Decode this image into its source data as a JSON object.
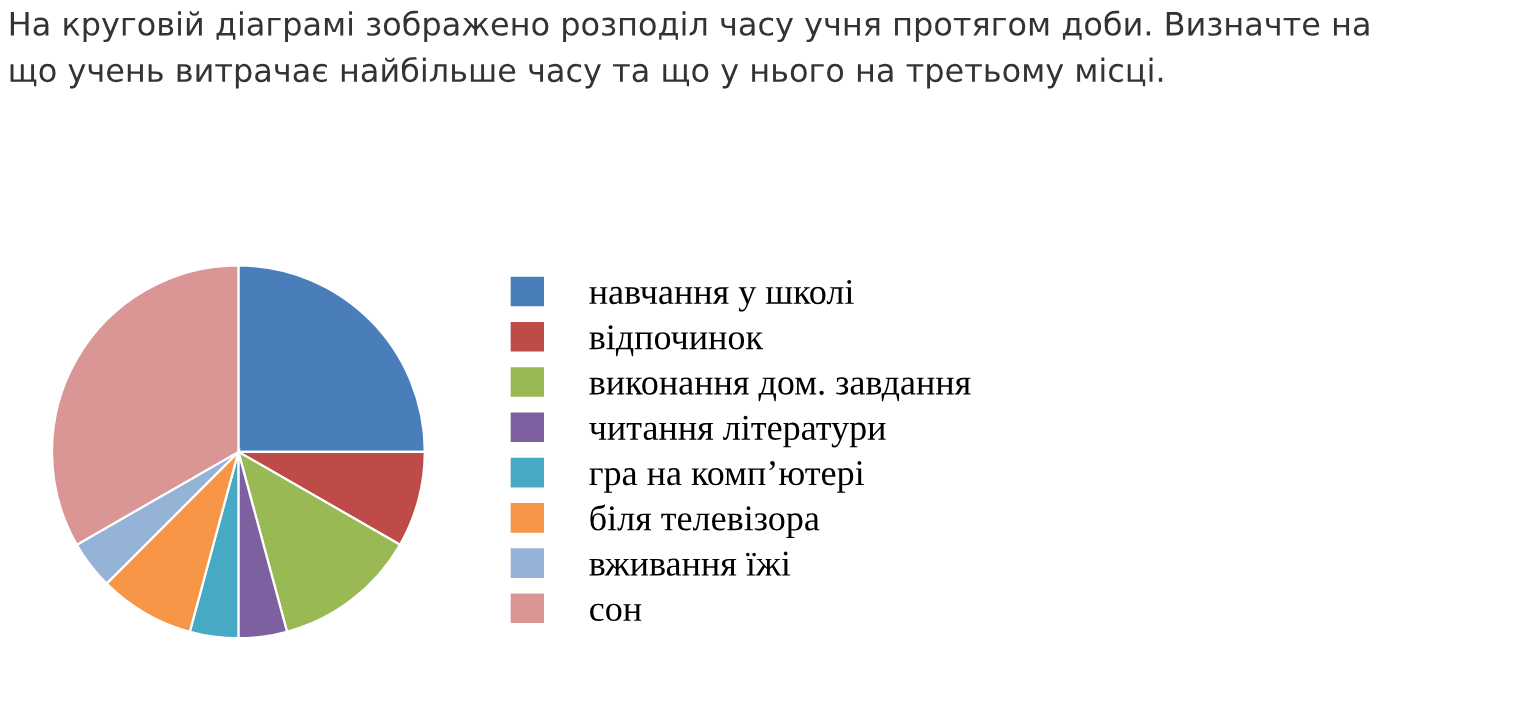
{
  "chart_data": {
    "type": "pie",
    "title": "На круговій діаграмі зображено розподіл часу учня протягом доби. Визначте на\nщо учень витрачає найбільше часу та що у нього на третьому місці.",
    "categories": [
      "навчання у школі",
      "відпочинок",
      "виконання дом. завдання",
      "читання літератури",
      "гра на комп’ютері",
      "біля телевізора",
      "вживання їжі",
      "сон"
    ],
    "values": [
      25,
      8.3,
      12.5,
      4.2,
      4.2,
      8.3,
      4.2,
      33.3
    ],
    "colors": [
      "#4a7ebb",
      "#be4b48",
      "#98b954",
      "#7d60a0",
      "#46aac5",
      "#f79646",
      "#95b3d7",
      "#d99694"
    ],
    "legend": "right"
  }
}
